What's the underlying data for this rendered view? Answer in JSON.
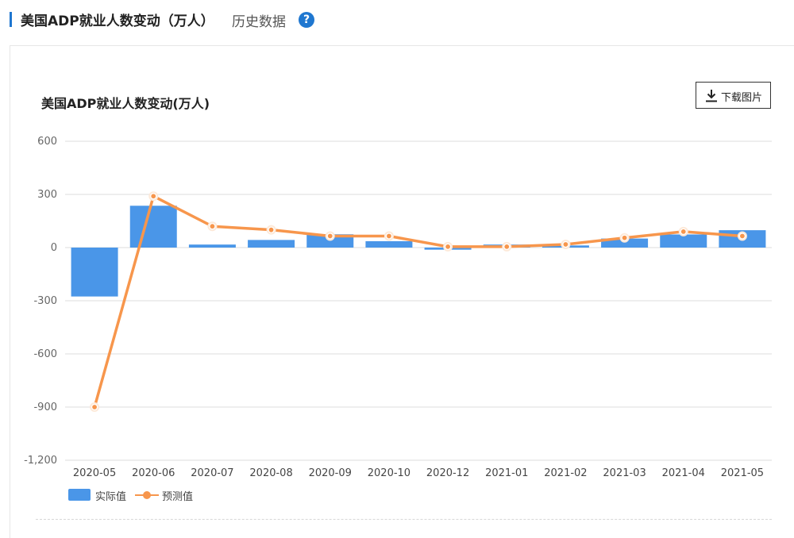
{
  "header": {
    "title": "美国ADP就业人数变动（万人）",
    "history_link": "历史数据",
    "help_symbol": "?"
  },
  "download": {
    "label": "下载图片",
    "icon": "download-icon"
  },
  "colors": {
    "bar": "#4a96e8",
    "line": "#f7964c",
    "accent": "#1f77d0",
    "grid": "#dddddd"
  },
  "chart_data": {
    "type": "bar",
    "title": "美国ADP就业人数变动(万人)",
    "xlabel": "",
    "ylabel": "",
    "categories": [
      "2020-05",
      "2020-06",
      "2020-07",
      "2020-08",
      "2020-09",
      "2020-10",
      "2020-12",
      "2021-01",
      "2021-02",
      "2021-03",
      "2021-04",
      "2021-05"
    ],
    "yticks": [
      "600",
      "300",
      "0",
      "-300",
      "-600",
      "-900",
      "-1,200"
    ],
    "ylim": [
      -1200,
      600
    ],
    "grid": true,
    "legend_position": "bottom-left",
    "series": [
      {
        "name": "实际值",
        "type": "bar",
        "values": [
          -276,
          236,
          17,
          43,
          75,
          36,
          -12,
          17,
          12,
          51,
          74,
          98
        ]
      },
      {
        "name": "预测值",
        "type": "line",
        "values": [
          -900,
          290,
          120,
          100,
          65,
          65,
          5,
          5,
          18,
          55,
          90,
          65
        ]
      }
    ]
  }
}
